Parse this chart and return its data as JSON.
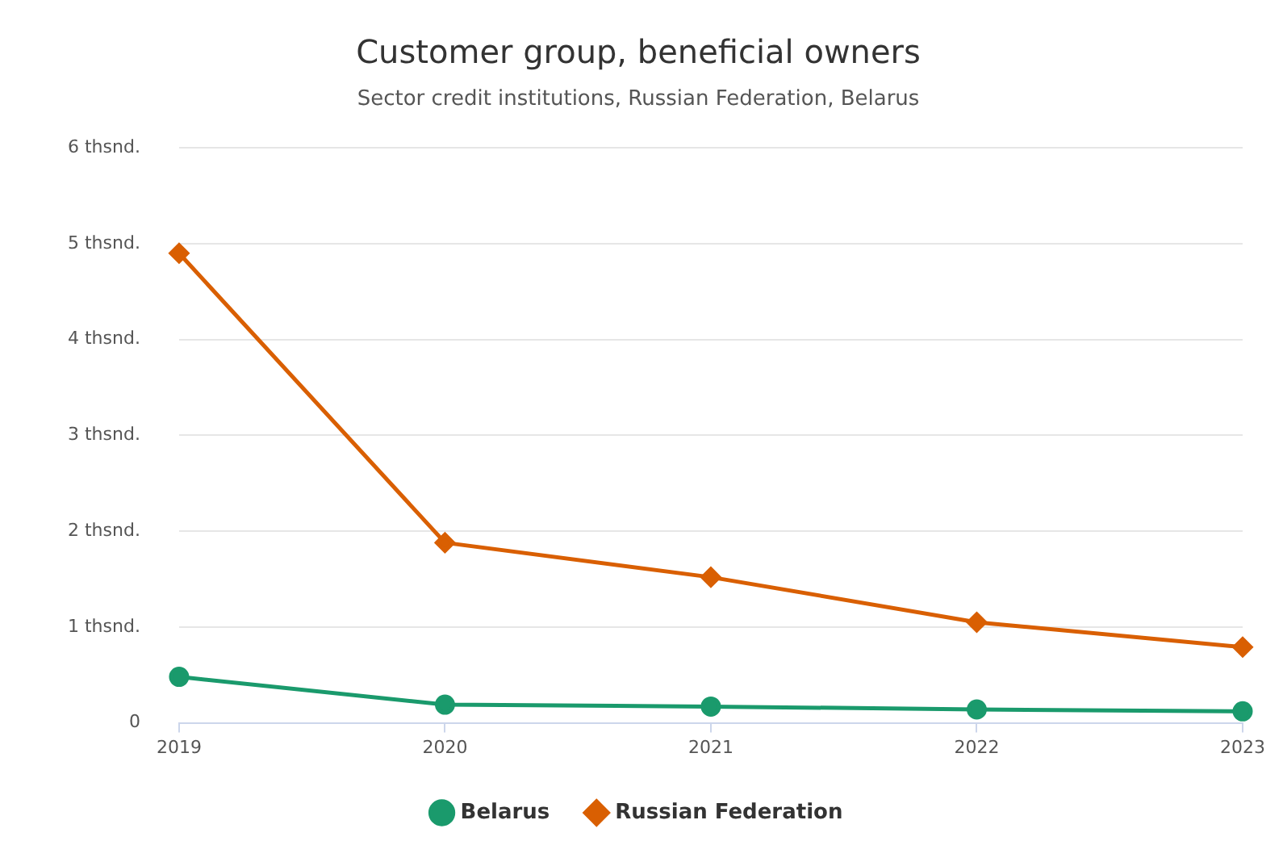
{
  "chart_data": {
    "type": "line",
    "title": "Customer group, beneficial owners",
    "subtitle": "Sector credit institutions, Russian Federation, Belarus",
    "categories": [
      "2019",
      "2020",
      "2021",
      "2022",
      "2023"
    ],
    "series": [
      {
        "name": "Belarus",
        "color": "#1a9a6c",
        "marker": "circle",
        "values": [
          0.48,
          0.19,
          0.17,
          0.14,
          0.12
        ]
      },
      {
        "name": "Russian Federation",
        "color": "#d95f02",
        "marker": "diamond",
        "values": [
          4.9,
          1.88,
          1.52,
          1.05,
          0.79
        ]
      }
    ],
    "ylim": [
      0,
      6
    ],
    "yticks": [
      0,
      {
        "value": 1,
        "label": "1 thsnd."
      },
      {
        "value": 2,
        "label": "2 thsnd."
      },
      {
        "value": 3,
        "label": "3 thsnd."
      },
      {
        "value": 4,
        "label": "4 thsnd."
      },
      {
        "value": 5,
        "label": "5 thsnd."
      },
      {
        "value": 6,
        "label": "6 thsnd."
      }
    ],
    "grid": "y",
    "legend": "bottom",
    "line_style": "solid"
  }
}
